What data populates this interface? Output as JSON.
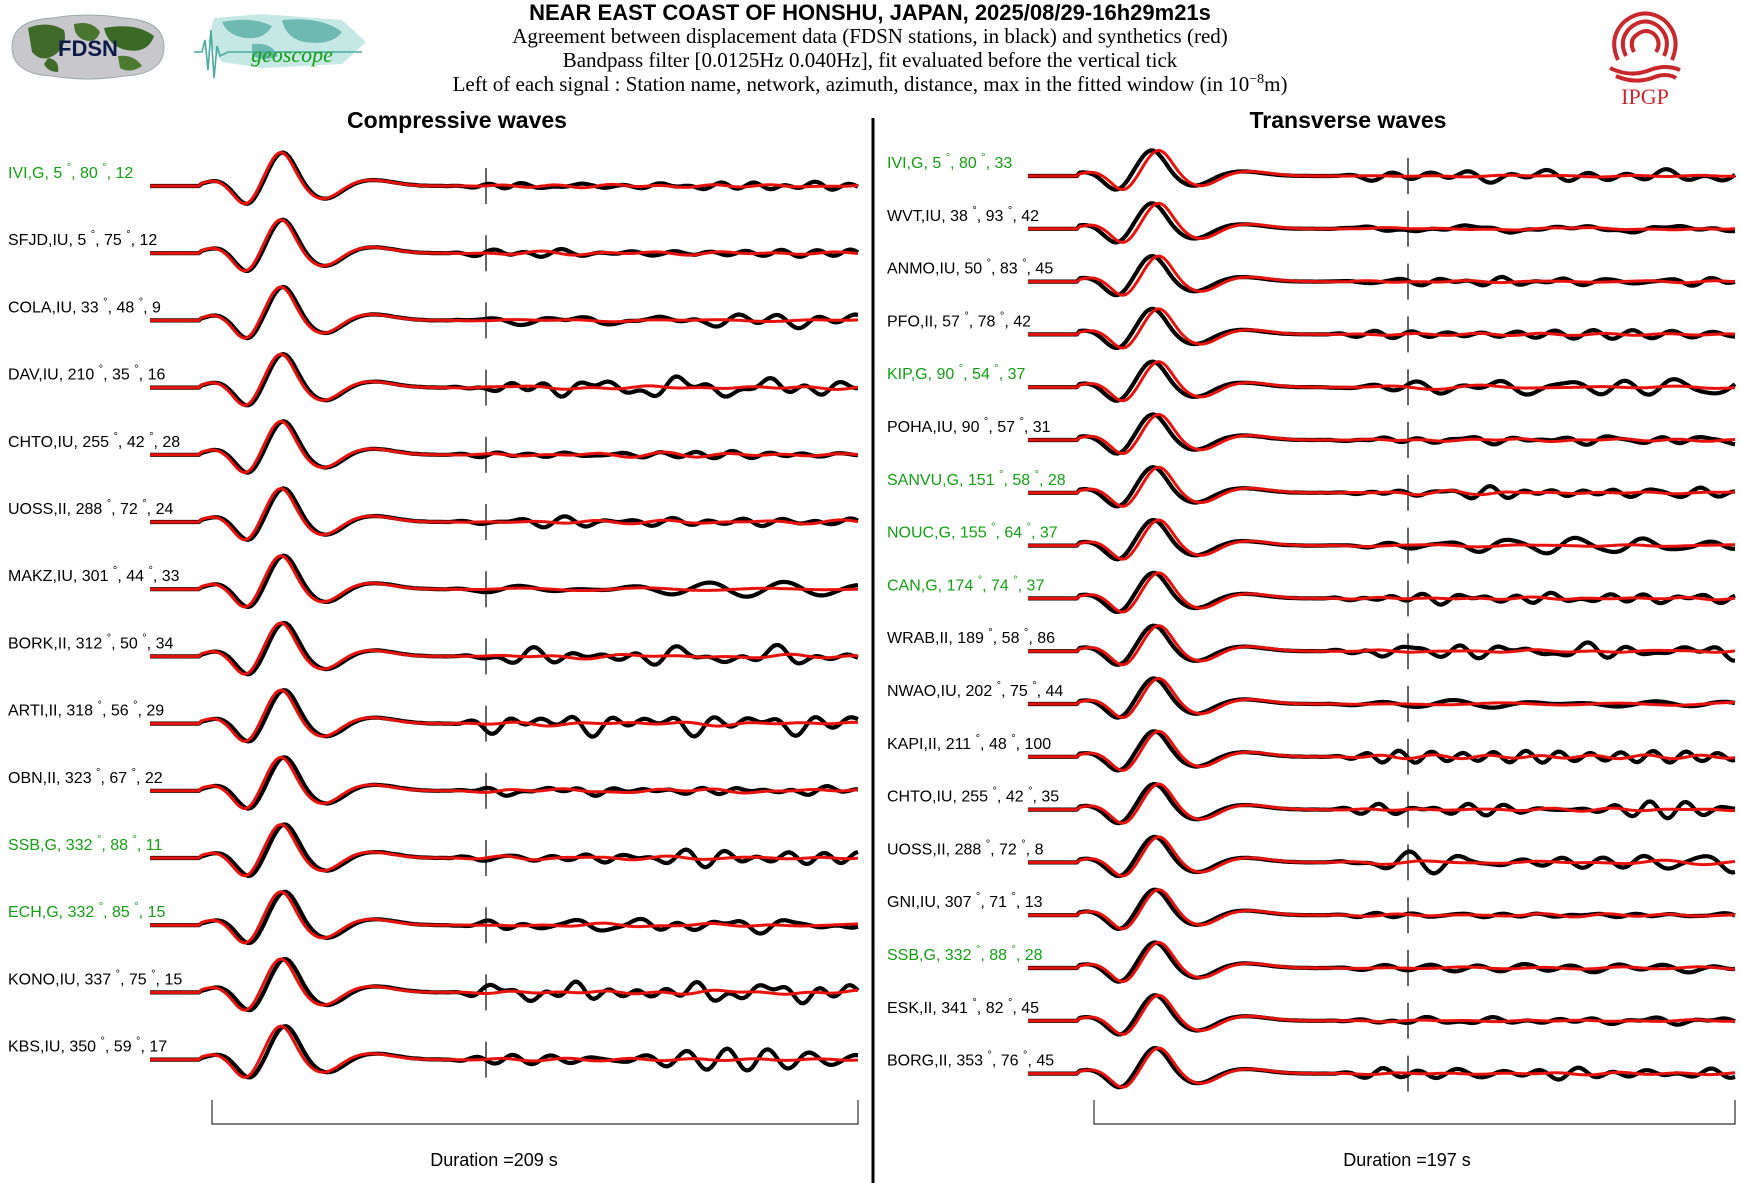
{
  "header": {
    "title": "NEAR EAST COAST OF HONSHU, JAPAN, 2025/08/29-16h29m21s",
    "line1": "Agreement between displacement data (FDSN stations, in black) and synthetics (red)",
    "line2": "Bandpass filter [0.0125Hz 0.040Hz], fit evaluated before the vertical tick",
    "line3_prefix": "Left of each signal : Station name, network, azimuth, distance, max in the fitted window (in ",
    "line3_base": "10",
    "line3_exp": "−8",
    "line3_suffix": "m)"
  },
  "logos": {
    "fdsn": "FDSN",
    "geoscope": "geoscope",
    "ipgp": "IPGP"
  },
  "colors": {
    "data": "#000000",
    "synthetic": "#e8120c",
    "geoscope_label": "#12a012",
    "ipgp": "#c8282d"
  },
  "chart_data": [
    {
      "type": "line",
      "title": "Compressive waves",
      "duration_label": "Duration =209 s",
      "series": [
        {
          "name": "data (black)"
        },
        {
          "name": "synthetics (red)"
        }
      ],
      "stations": [
        {
          "code": "IVI",
          "net": "G",
          "az": "5",
          "dist": "80",
          "max": "12",
          "geoscope": true
        },
        {
          "code": "SFJD",
          "net": "IU",
          "az": "5",
          "dist": "75",
          "max": "12",
          "geoscope": false
        },
        {
          "code": "COLA",
          "net": "IU",
          "az": "33",
          "dist": "48",
          "max": "9",
          "geoscope": false
        },
        {
          "code": "DAV",
          "net": "IU",
          "az": "210",
          "dist": "35",
          "max": "16",
          "geoscope": false
        },
        {
          "code": "CHTO",
          "net": "IU",
          "az": "255",
          "dist": "42",
          "max": "28",
          "geoscope": false
        },
        {
          "code": "UOSS",
          "net": "II",
          "az": "288",
          "dist": "72",
          "max": "24",
          "geoscope": false
        },
        {
          "code": "MAKZ",
          "net": "IU",
          "az": "301",
          "dist": "44",
          "max": "33",
          "geoscope": false
        },
        {
          "code": "BORK",
          "net": "II",
          "az": "312",
          "dist": "50",
          "max": "34",
          "geoscope": false
        },
        {
          "code": "ARTI",
          "net": "II",
          "az": "318",
          "dist": "56",
          "max": "29",
          "geoscope": false
        },
        {
          "code": "OBN",
          "net": "II",
          "az": "323",
          "dist": "67",
          "max": "22",
          "geoscope": false
        },
        {
          "code": "SSB",
          "net": "G",
          "az": "332",
          "dist": "88",
          "max": "11",
          "geoscope": true
        },
        {
          "code": "ECH",
          "net": "G",
          "az": "332",
          "dist": "85",
          "max": "15",
          "geoscope": true
        },
        {
          "code": "KONO",
          "net": "IU",
          "az": "337",
          "dist": "75",
          "max": "15",
          "geoscope": false
        },
        {
          "code": "KBS",
          "net": "IU",
          "az": "350",
          "dist": "59",
          "max": "17",
          "geoscope": false
        }
      ]
    },
    {
      "type": "line",
      "title": "Transverse waves",
      "duration_label": "Duration =197 s",
      "series": [
        {
          "name": "data (black)"
        },
        {
          "name": "synthetics (red)"
        }
      ],
      "stations": [
        {
          "code": "IVI",
          "net": "G",
          "az": "5",
          "dist": "80",
          "max": "33",
          "geoscope": true
        },
        {
          "code": "WVT",
          "net": "IU",
          "az": "38",
          "dist": "93",
          "max": "42",
          "geoscope": false
        },
        {
          "code": "ANMO",
          "net": "IU",
          "az": "50",
          "dist": "83",
          "max": "45",
          "geoscope": false
        },
        {
          "code": "PFO",
          "net": "II",
          "az": "57",
          "dist": "78",
          "max": "42",
          "geoscope": false
        },
        {
          "code": "KIP",
          "net": "G",
          "az": "90",
          "dist": "54",
          "max": "37",
          "geoscope": true
        },
        {
          "code": "POHA",
          "net": "IU",
          "az": "90",
          "dist": "57",
          "max": "31",
          "geoscope": false
        },
        {
          "code": "SANVU",
          "net": "G",
          "az": "151",
          "dist": "58",
          "max": "28",
          "geoscope": true
        },
        {
          "code": "NOUC",
          "net": "G",
          "az": "155",
          "dist": "64",
          "max": "37",
          "geoscope": true
        },
        {
          "code": "CAN",
          "net": "G",
          "az": "174",
          "dist": "74",
          "max": "37",
          "geoscope": true
        },
        {
          "code": "WRAB",
          "net": "II",
          "az": "189",
          "dist": "58",
          "max": "86",
          "geoscope": false
        },
        {
          "code": "NWAO",
          "net": "IU",
          "az": "202",
          "dist": "75",
          "max": "44",
          "geoscope": false
        },
        {
          "code": "KAPI",
          "net": "II",
          "az": "211",
          "dist": "48",
          "max": "100",
          "geoscope": false
        },
        {
          "code": "CHTO",
          "net": "IU",
          "az": "255",
          "dist": "42",
          "max": "35",
          "geoscope": false
        },
        {
          "code": "UOSS",
          "net": "II",
          "az": "288",
          "dist": "72",
          "max": "8",
          "geoscope": false
        },
        {
          "code": "GNI",
          "net": "IU",
          "az": "307",
          "dist": "71",
          "max": "13",
          "geoscope": false
        },
        {
          "code": "SSB",
          "net": "G",
          "az": "332",
          "dist": "88",
          "max": "28",
          "geoscope": true
        },
        {
          "code": "ESK",
          "net": "II",
          "az": "341",
          "dist": "82",
          "max": "45",
          "geoscope": false
        },
        {
          "code": "BORG",
          "net": "II",
          "az": "353",
          "dist": "76",
          "max": "45",
          "geoscope": false
        }
      ]
    }
  ]
}
